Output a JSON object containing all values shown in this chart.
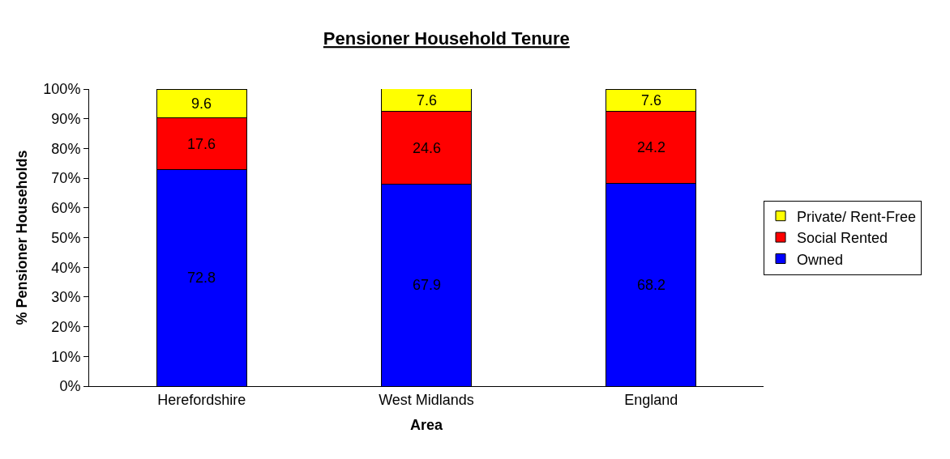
{
  "chart_data": {
    "type": "bar",
    "title": "Pensioner Household Tenure",
    "xlabel": "Area",
    "ylabel": "% Pensioner Households",
    "categories": [
      "Herefordshire",
      "West Midlands",
      "England"
    ],
    "stacked": true,
    "data_labels": true,
    "legend": "right",
    "series": [
      {
        "name": "Owned",
        "color": "#0000ff",
        "values": [
          72.8,
          67.9,
          68.2
        ]
      },
      {
        "name": "Social Rented",
        "color": "#ff0000",
        "values": [
          17.6,
          24.6,
          24.2
        ]
      },
      {
        "name": "Private/ Rent-Free",
        "color": "#ffff00",
        "values": [
          9.6,
          7.6,
          7.6
        ]
      }
    ],
    "ylim": [
      0,
      100
    ],
    "yticks": [
      {
        "value": 0,
        "label": "0%"
      },
      {
        "value": 10,
        "label": "10%"
      },
      {
        "value": 20,
        "label": "20%"
      },
      {
        "value": 30,
        "label": "30%"
      },
      {
        "value": 40,
        "label": "40%"
      },
      {
        "value": 50,
        "label": "50%"
      },
      {
        "value": 60,
        "label": "60%"
      },
      {
        "value": 70,
        "label": "70%"
      },
      {
        "value": 80,
        "label": "80%"
      },
      {
        "value": 90,
        "label": "90%"
      },
      {
        "value": 100,
        "label": "100%"
      }
    ]
  }
}
